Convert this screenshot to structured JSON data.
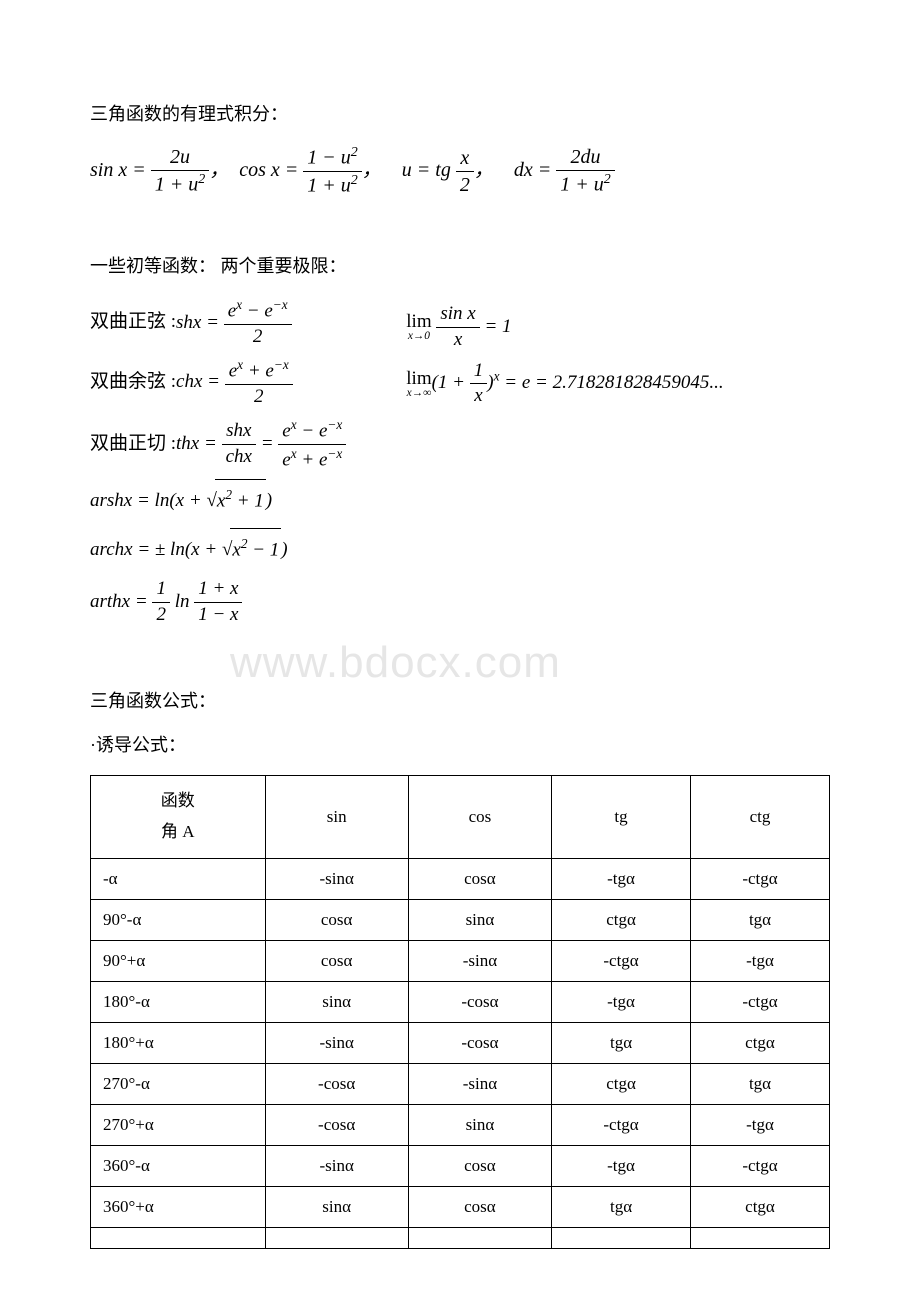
{
  "section1_title": "三角函数的有理式积分：",
  "section2_title": "一些初等函数：  两个重要极限：",
  "section3_title": "三角函数公式：",
  "section3_sub": "·诱导公式：",
  "watermark": "www.bdocx.com",
  "hyperbolic": {
    "sh_label": "双曲正弦 :",
    "sh_fn": "shx",
    "ch_label": "双曲余弦 :",
    "ch_fn": "chx",
    "th_label": "双曲正切 :",
    "th_fn": "thx",
    "arsh": "arshx",
    "arch": "archx",
    "arth": "arthx"
  },
  "limit_e": "= e = 2.718281828459045...",
  "table": {
    "header": [
      "函数",
      "角 A",
      "sin",
      "cos",
      "tg",
      "ctg"
    ],
    "rows": [
      [
        "-α",
        "-sinα",
        "cosα",
        "-tgα",
        "-ctgα"
      ],
      [
        "90°-α",
        "cosα",
        "sinα",
        "ctgα",
        "tgα"
      ],
      [
        "90°+α",
        "cosα",
        "-sinα",
        "-ctgα",
        "-tgα"
      ],
      [
        "180°-α",
        "sinα",
        "-cosα",
        "-tgα",
        "-ctgα"
      ],
      [
        "180°+α",
        "-sinα",
        "-cosα",
        "tgα",
        "ctgα"
      ],
      [
        "270°-α",
        "-cosα",
        "-sinα",
        "ctgα",
        "tgα"
      ],
      [
        "270°+α",
        "-cosα",
        "sinα",
        "-ctgα",
        "-tgα"
      ],
      [
        "360°-α",
        "-sinα",
        "cosα",
        "-tgα",
        "-ctgα"
      ],
      [
        "360°+α",
        "sinα",
        "cosα",
        "tgα",
        "ctgα"
      ],
      [
        "",
        "",
        "",
        "",
        ""
      ]
    ],
    "col_widths": [
      "20%",
      "20%",
      "20%",
      "20%",
      "20%"
    ]
  },
  "colors": {
    "text": "#000000",
    "bg": "#ffffff",
    "watermark": "#e6e6e6",
    "border": "#000000"
  },
  "fonts": {
    "body_size": 18,
    "formula_size": 20,
    "table_size": 17,
    "watermark_size": 44
  }
}
